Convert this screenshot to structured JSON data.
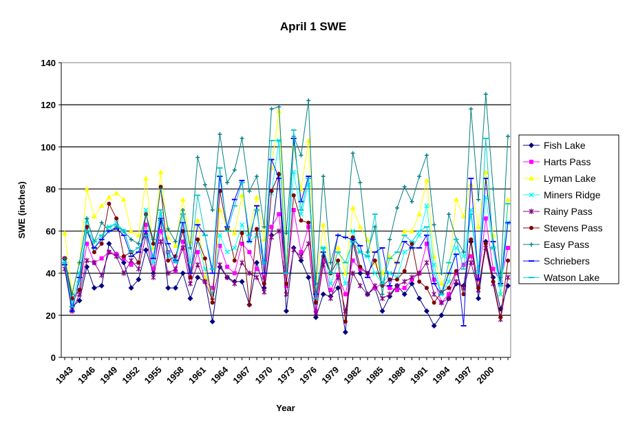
{
  "chart_data": {
    "type": "line",
    "title": "April 1 SWE",
    "xlabel": "Year",
    "ylabel": "SWE (inches)",
    "ylim": [
      0,
      140
    ],
    "yticks": [
      "0",
      "20",
      "40",
      "60",
      "80",
      "100",
      "120",
      "140"
    ],
    "grid": "horizontal",
    "legend_position": "right",
    "x": [
      1943,
      1944,
      1945,
      1946,
      1947,
      1948,
      1949,
      1950,
      1951,
      1952,
      1953,
      1954,
      1955,
      1956,
      1957,
      1958,
      1959,
      1960,
      1961,
      1962,
      1963,
      1964,
      1965,
      1966,
      1967,
      1968,
      1969,
      1970,
      1971,
      1972,
      1973,
      1974,
      1975,
      1976,
      1977,
      1978,
      1979,
      1980,
      1981,
      1982,
      1983,
      1984,
      1985,
      1986,
      1987,
      1988,
      1989,
      1990,
      1991,
      1992,
      1993,
      1994,
      1995,
      1996,
      1997,
      1998,
      1999,
      2000,
      2001,
      2002,
      2003
    ],
    "xtick_labels": [
      "1943",
      "1946",
      "1949",
      "1952",
      "1955",
      "1958",
      "1961",
      "1964",
      "1967",
      "1970",
      "1973",
      "1976",
      "1979",
      "1982",
      "1985",
      "1988",
      "1991",
      "1994",
      "1997",
      "2000"
    ],
    "series": [
      {
        "name": "Fish Lake",
        "color": "#000080",
        "marker": "diamond",
        "values": [
          47,
          24,
          27,
          43,
          33,
          34,
          54,
          49,
          45,
          33,
          37,
          51,
          40,
          65,
          33,
          33,
          40,
          28,
          38,
          36,
          17,
          43,
          38,
          36,
          36,
          25,
          45,
          33,
          58,
          87,
          22,
          52,
          46,
          38,
          19,
          30,
          29,
          33,
          12,
          55,
          40,
          30,
          33,
          22,
          29,
          34,
          30,
          35,
          28,
          22,
          15,
          20,
          28,
          35,
          34,
          55,
          28,
          55,
          38,
          23,
          34
        ]
      },
      {
        "name": "Harts Pass",
        "color": "#ff00ff",
        "marker": "square",
        "values": [
          47,
          26,
          32,
          54,
          45,
          47,
          50,
          49,
          47,
          44,
          45,
          63,
          42,
          60,
          50,
          41,
          55,
          38,
          50,
          36,
          33,
          53,
          43,
          40,
          54,
          50,
          42,
          38,
          62,
          68,
          34,
          70,
          50,
          62,
          22,
          46,
          32,
          39,
          30,
          46,
          42,
          40,
          33,
          35,
          33,
          32,
          33,
          37,
          40,
          54,
          37,
          26,
          30,
          40,
          44,
          48,
          37,
          66,
          42,
          36,
          52
        ]
      },
      {
        "name": "Lyman Lake",
        "color": "#ffff00",
        "marker": "triangle",
        "values": [
          59,
          31,
          45,
          80,
          67,
          72,
          76,
          78,
          75,
          60,
          58,
          85,
          52,
          88,
          57,
          53,
          75,
          55,
          65,
          38,
          28,
          70,
          62,
          59,
          77,
          60,
          76,
          56,
          90,
          117,
          45,
          100,
          80,
          103,
          33,
          63,
          40,
          52,
          40,
          71,
          62,
          56,
          45,
          40,
          48,
          45,
          60,
          60,
          68,
          84,
          48,
          35,
          40,
          75,
          67,
          82,
          62,
          88,
          58,
          30,
          75
        ]
      },
      {
        "name": "Miners Ridge",
        "color": "#00ffff",
        "marker": "x",
        "values": [
          45,
          26,
          40,
          65,
          52,
          57,
          62,
          64,
          60,
          50,
          45,
          70,
          45,
          68,
          48,
          46,
          60,
          42,
          55,
          42,
          30,
          58,
          50,
          52,
          63,
          55,
          58,
          45,
          78,
          103,
          41,
          88,
          68,
          82,
          26,
          52,
          35,
          45,
          35,
          60,
          50,
          48,
          40,
          35,
          40,
          38,
          50,
          52,
          58,
          72,
          44,
          30,
          36,
          52,
          48,
          70,
          42,
          76,
          52,
          30,
          64
        ]
      },
      {
        "name": "Rainy Pass",
        "color": "#800080",
        "marker": "star",
        "values": [
          42,
          22,
          30,
          46,
          45,
          39,
          50,
          48,
          40,
          46,
          42,
          58,
          38,
          55,
          40,
          42,
          52,
          35,
          44,
          36,
          27,
          44,
          38,
          35,
          45,
          40,
          38,
          31,
          57,
          60,
          30,
          51,
          48,
          54,
          21,
          44,
          28,
          38,
          22,
          40,
          34,
          30,
          34,
          28,
          30,
          34,
          36,
          38,
          40,
          45,
          30,
          26,
          28,
          36,
          33,
          45,
          32,
          52,
          35,
          18,
          38
        ]
      },
      {
        "name": "Stevens Pass",
        "color": "#800000",
        "marker": "circle",
        "values": [
          47,
          28,
          32,
          62,
          50,
          54,
          73,
          66,
          48,
          50,
          45,
          68,
          54,
          81,
          46,
          48,
          60,
          38,
          56,
          47,
          26,
          79,
          61,
          46,
          59,
          25,
          61,
          35,
          79,
          87,
          35,
          77,
          65,
          64,
          26,
          48,
          40,
          46,
          17,
          57,
          43,
          40,
          46,
          34,
          37,
          37,
          41,
          54,
          36,
          33,
          26,
          31,
          33,
          41,
          30,
          56,
          33,
          54,
          36,
          19,
          46
        ]
      },
      {
        "name": "Easy Pass",
        "color": "#008080",
        "marker": "plus",
        "values": [
          47,
          30,
          45,
          66,
          55,
          64,
          60,
          62,
          60,
          56,
          54,
          68,
          56,
          80,
          61,
          55,
          70,
          52,
          95,
          82,
          70,
          106,
          83,
          89,
          104,
          79,
          86,
          62,
          118,
          119,
          59,
          105,
          96,
          122,
          35,
          86,
          45,
          58,
          57,
          97,
          83,
          50,
          62,
          30,
          56,
          71,
          81,
          74,
          86,
          96,
          63,
          40,
          68,
          56,
          50,
          118,
          75,
          125,
          80,
          38,
          105
        ]
      },
      {
        "name": "Schriebers",
        "color": "#0000ff",
        "marker": "dash",
        "values": [
          44,
          22,
          38,
          60,
          52,
          56,
          60,
          61,
          58,
          48,
          50,
          60,
          47,
          66,
          54,
          46,
          64,
          40,
          63,
          58,
          40,
          86,
          62,
          75,
          84,
          55,
          72,
          40,
          94,
          85,
          40,
          104,
          74,
          86,
          30,
          50,
          40,
          58,
          57,
          56,
          53,
          38,
          50,
          52,
          34,
          45,
          55,
          52,
          52,
          58,
          35,
          30,
          40,
          49,
          15,
          85,
          37,
          85,
          55,
          35,
          64
        ]
      },
      {
        "name": "Watson Lake",
        "color": "#00cccc",
        "marker": "dash",
        "values": [
          45,
          24,
          36,
          60,
          55,
          58,
          62,
          63,
          60,
          50,
          52,
          58,
          48,
          70,
          50,
          45,
          68,
          45,
          77,
          58,
          42,
          90,
          60,
          72,
          83,
          58,
          70,
          45,
          103,
          103,
          40,
          108,
          70,
          85,
          28,
          52,
          40,
          50,
          45,
          55,
          50,
          48,
          68,
          35,
          47,
          50,
          58,
          55,
          60,
          62,
          40,
          30,
          45,
          56,
          42,
          68,
          40,
          104,
          52,
          34,
          73
        ]
      }
    ]
  }
}
